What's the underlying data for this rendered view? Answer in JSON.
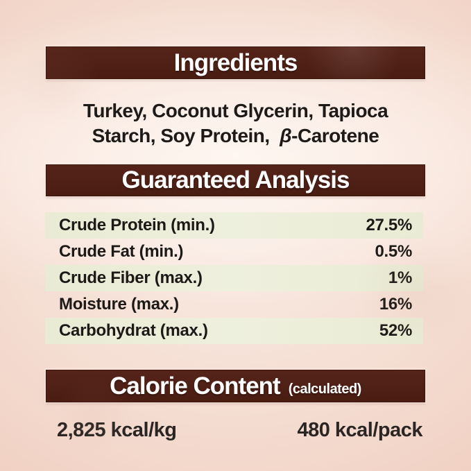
{
  "colors": {
    "banner_brown": "#4e2015",
    "banner_text": "#ffffff",
    "background_pink_edge": "#ebc7b9",
    "background_center_light": "#f9ece5",
    "row_shade_green": "#eaecd7",
    "body_text_dark": "#1d1a18"
  },
  "ingredients": {
    "title": "Ingredients",
    "lines": [
      "Turkey, Coconut Glycerin, Tapioca",
      "Starch, Soy Protein,"
    ],
    "beta_symbol": "β",
    "beta_suffix": "-Carotene"
  },
  "guaranteed_analysis": {
    "title": "Guaranteed Analysis",
    "rows": [
      {
        "label": "Crude Protein (min.)",
        "value": "27.5%"
      },
      {
        "label": "Crude Fat (min.)",
        "value": "0.5%"
      },
      {
        "label": "Crude Fiber (max.)",
        "value": "1%"
      },
      {
        "label": "Moisture (max.)",
        "value": "16%"
      },
      {
        "label": "Carbohydrat (max.)",
        "value": "52%"
      }
    ]
  },
  "calorie_content": {
    "title": "Calorie Content",
    "subtitle": "(calculated)",
    "per_kg": "2,825 kcal/kg",
    "per_pack": "480 kcal/pack"
  }
}
